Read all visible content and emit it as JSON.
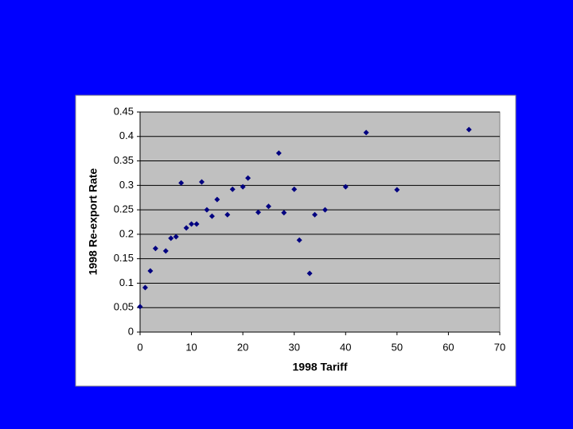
{
  "chart_data": {
    "type": "scatter",
    "x_label": "1998 Tariff",
    "y_label": "1998 Re-export Rate",
    "x": [
      0,
      1,
      2,
      3,
      5,
      6,
      7,
      8,
      9,
      10,
      11,
      12,
      13,
      14,
      15,
      17,
      18,
      20,
      21,
      23,
      25,
      27,
      28,
      30,
      31,
      33,
      34,
      36,
      40,
      44,
      50,
      64
    ],
    "values": [
      0.052,
      0.091,
      0.125,
      0.171,
      0.166,
      0.192,
      0.195,
      0.305,
      0.213,
      0.221,
      0.221,
      0.307,
      0.25,
      0.237,
      0.271,
      0.24,
      0.292,
      0.297,
      0.315,
      0.245,
      0.257,
      0.366,
      0.244,
      0.292,
      0.188,
      0.12,
      0.24,
      0.25,
      0.297,
      0.408,
      0.291,
      0.414
    ],
    "color": "#000080",
    "xlim": [
      0,
      70
    ],
    "xticks": [
      0,
      10,
      20,
      30,
      40,
      50,
      60,
      70
    ],
    "ylim": [
      0,
      0.45
    ],
    "yticks": [
      0,
      0.05,
      0.1,
      0.15,
      0.2,
      0.25,
      0.3,
      0.35,
      0.4,
      0.45
    ],
    "grid": true
  }
}
